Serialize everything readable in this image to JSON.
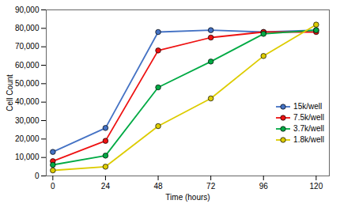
{
  "chart_data": {
    "type": "line",
    "xlabel": "Time (hours)",
    "ylabel": "Cell Count",
    "x": [
      0,
      24,
      48,
      72,
      96,
      120
    ],
    "series": [
      {
        "name": "15k/well",
        "color": "#4472C4",
        "values": [
          13000,
          26000,
          78000,
          79000,
          78000,
          79000
        ]
      },
      {
        "name": "7.5k/well",
        "color": "#EE1111",
        "values": [
          8000,
          19000,
          68000,
          75000,
          78000,
          78000
        ]
      },
      {
        "name": "3.7k/well",
        "color": "#00AA44",
        "values": [
          6000,
          11000,
          48000,
          62000,
          77000,
          79000
        ]
      },
      {
        "name": "1.8k/well",
        "color": "#DDCC00",
        "values": [
          3000,
          5000,
          27000,
          42000,
          65000,
          82000
        ]
      }
    ],
    "xlim": [
      -3,
      126
    ],
    "xticks": [
      0,
      24,
      48,
      72,
      96,
      120
    ],
    "ylim": [
      0,
      90000
    ],
    "yticks": [
      0,
      {
        "value": 10000,
        "label": "10,000"
      },
      {
        "value": 20000,
        "label": "20,000"
      },
      {
        "value": 30000,
        "label": "30,000"
      },
      {
        "value": 40000,
        "label": "40,000"
      },
      {
        "value": 50000,
        "label": "50,000"
      },
      {
        "value": 60000,
        "label": "60,000"
      },
      {
        "value": 70000,
        "label": "70,000"
      },
      {
        "value": 80000,
        "label": "80,000"
      },
      {
        "value": 90000,
        "label": "90,000"
      }
    ],
    "marker": "circle",
    "grid": false,
    "legend": "lower right"
  }
}
